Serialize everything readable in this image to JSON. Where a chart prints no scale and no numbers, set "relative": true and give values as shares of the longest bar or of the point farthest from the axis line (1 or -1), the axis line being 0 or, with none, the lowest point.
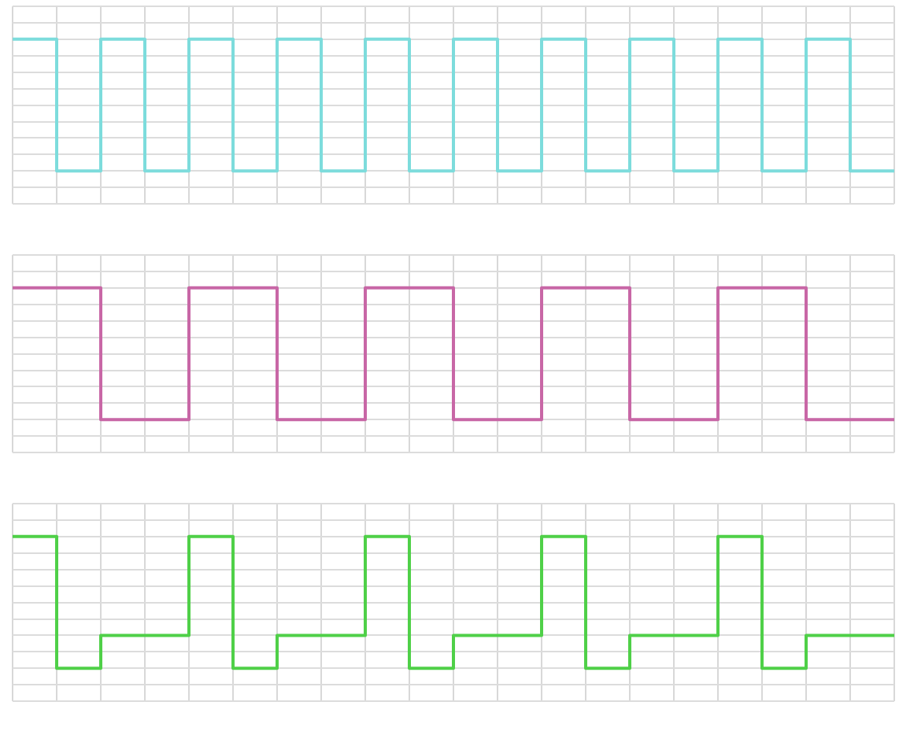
{
  "chart_data": [
    {
      "type": "step",
      "relative": true,
      "grid": true,
      "categories": [
        null,
        null,
        null,
        null,
        null,
        null,
        null,
        null,
        null,
        null,
        null,
        null,
        null,
        null,
        null,
        null,
        null,
        null,
        null,
        null,
        null
      ],
      "color": "#7ddcdc",
      "values": [
        1,
        0,
        1,
        0,
        1,
        0,
        1,
        0,
        1,
        0,
        1,
        0,
        1,
        0,
        1,
        0,
        1,
        0,
        1,
        0,
        0
      ]
    },
    {
      "type": "step",
      "relative": true,
      "grid": true,
      "categories": [
        null,
        null,
        null,
        null,
        null,
        null,
        null,
        null,
        null,
        null,
        null,
        null,
        null,
        null,
        null,
        null,
        null,
        null,
        null,
        null,
        null
      ],
      "color": "#c867a6",
      "values": [
        1,
        1,
        0,
        0,
        1,
        1,
        0,
        0,
        1,
        1,
        0,
        0,
        1,
        1,
        0,
        0,
        1,
        1,
        0,
        0,
        0
      ]
    },
    {
      "type": "step",
      "relative": true,
      "grid": true,
      "categories": [
        null,
        null,
        null,
        null,
        null,
        null,
        null,
        null,
        null,
        null,
        null,
        null,
        null,
        null,
        null,
        null,
        null,
        null,
        null,
        null,
        null
      ],
      "color": "#4fd048",
      "values": [
        1,
        0,
        0.25,
        0.25,
        1,
        0,
        0.25,
        0.25,
        1,
        0,
        0.25,
        0.25,
        1,
        0,
        0.25,
        0.25,
        1,
        0,
        0.25,
        0.25,
        0.25
      ]
    }
  ]
}
